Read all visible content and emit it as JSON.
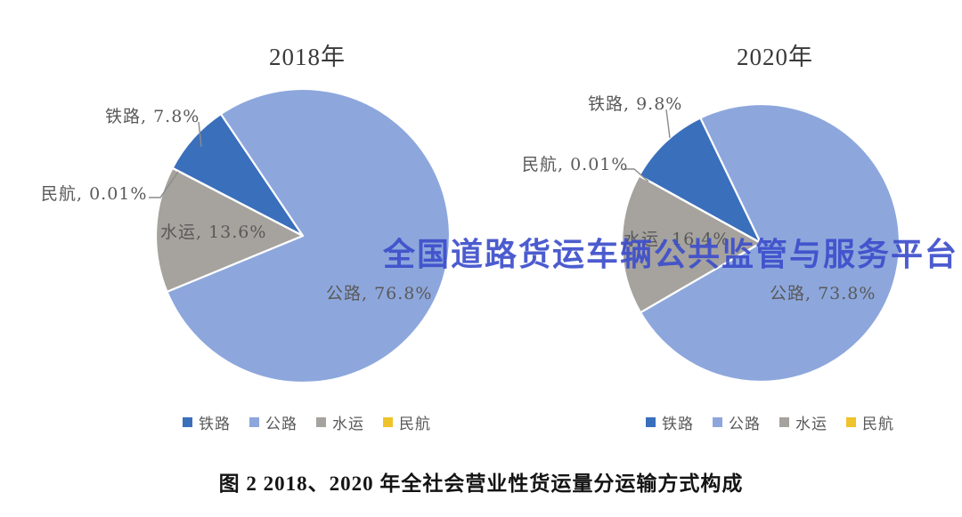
{
  "watermark": {
    "text": "全国道路货运车辆公共监管与服务平台",
    "color": "#3D4FCB"
  },
  "caption": "图 2 2018、2020 年全社会营业性货运量分运输方式构成",
  "legend": {
    "items": [
      {
        "label": "铁路",
        "color": "#3a6fbc"
      },
      {
        "label": "公路",
        "color": "#8da7dd"
      },
      {
        "label": "水运",
        "color": "#a6a39e"
      },
      {
        "label": "民航",
        "color": "#efc32b"
      }
    ]
  },
  "chart_data": [
    {
      "type": "pie",
      "title": "2018年",
      "labels": [
        "铁路",
        "公路",
        "水运",
        "民航"
      ],
      "values": [
        7.8,
        76.8,
        13.6,
        0.01
      ],
      "unit": "%",
      "data_labels": [
        "铁路, 7.8%",
        "公路, 76.8%",
        "水运, 13.6%",
        "民航, 0.01%"
      ],
      "colors": [
        "#3a6fbc",
        "#8da7dd",
        "#a6a39e",
        "#efc32b"
      ],
      "start_angle_deg": 297.5,
      "legend_position": "bottom"
    },
    {
      "type": "pie",
      "title": "2020年",
      "labels": [
        "铁路",
        "公路",
        "水运",
        "民航"
      ],
      "values": [
        9.8,
        73.8,
        16.4,
        0.01
      ],
      "unit": "%",
      "data_labels": [
        "铁路, 9.8%",
        "公路, 73.8%",
        "水运, 16.4%",
        "民航, 0.01%"
      ],
      "colors": [
        "#3a6fbc",
        "#8da7dd",
        "#a6a39e",
        "#efc32b"
      ],
      "start_angle_deg": 299,
      "legend_position": "bottom"
    }
  ]
}
